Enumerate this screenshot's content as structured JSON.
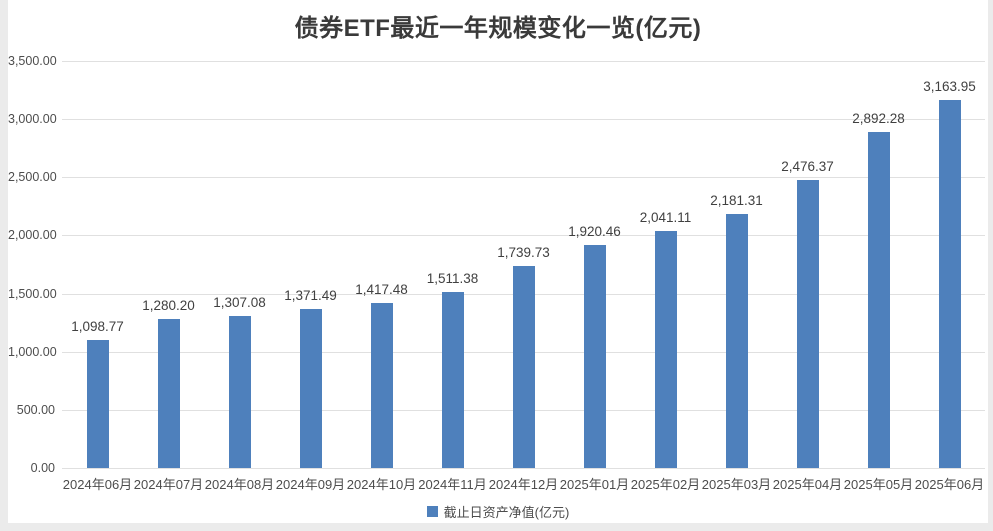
{
  "page": {
    "background_color": "#ebebeb",
    "card_background_color": "#ffffff"
  },
  "chart_data": {
    "type": "bar",
    "title": "债券ETF最近一年规模变化一览(亿元)",
    "categories": [
      "2024年06月",
      "2024年07月",
      "2024年08月",
      "2024年09月",
      "2024年10月",
      "2024年11月",
      "2024年12月",
      "2025年01月",
      "2025年02月",
      "2025年03月",
      "2025年04月",
      "2025年05月",
      "2025年06月"
    ],
    "series": [
      {
        "name": "截止日资产净值(亿元)",
        "values": [
          1098.77,
          1280.2,
          1307.08,
          1371.49,
          1417.48,
          1511.38,
          1739.73,
          1920.46,
          2041.11,
          2181.31,
          2476.37,
          2892.28,
          3163.95
        ]
      }
    ],
    "value_labels": [
      "1,098.77",
      "1,280.20",
      "1,307.08",
      "1,371.49",
      "1,417.48",
      "1,511.38",
      "1,739.73",
      "1,920.46",
      "2,041.11",
      "2,181.31",
      "2,476.37",
      "2,892.28",
      "3,163.95"
    ],
    "ylim": [
      0,
      3500
    ],
    "ytick_step": 500,
    "ytick_labels": [
      "0.00",
      "500.00",
      "1,000.00",
      "1,500.00",
      "2,000.00",
      "2,500.00",
      "3,000.00",
      "3,500.00"
    ],
    "grid": true,
    "legend_position": "bottom",
    "xlabel": "",
    "ylabel": ""
  },
  "colors": {
    "bar": "#4e80bc",
    "gridline": "#e0e0e0",
    "axis_text": "#4d4d4d",
    "value_label_text": "#404040",
    "title_text": "#3a3a3a"
  }
}
